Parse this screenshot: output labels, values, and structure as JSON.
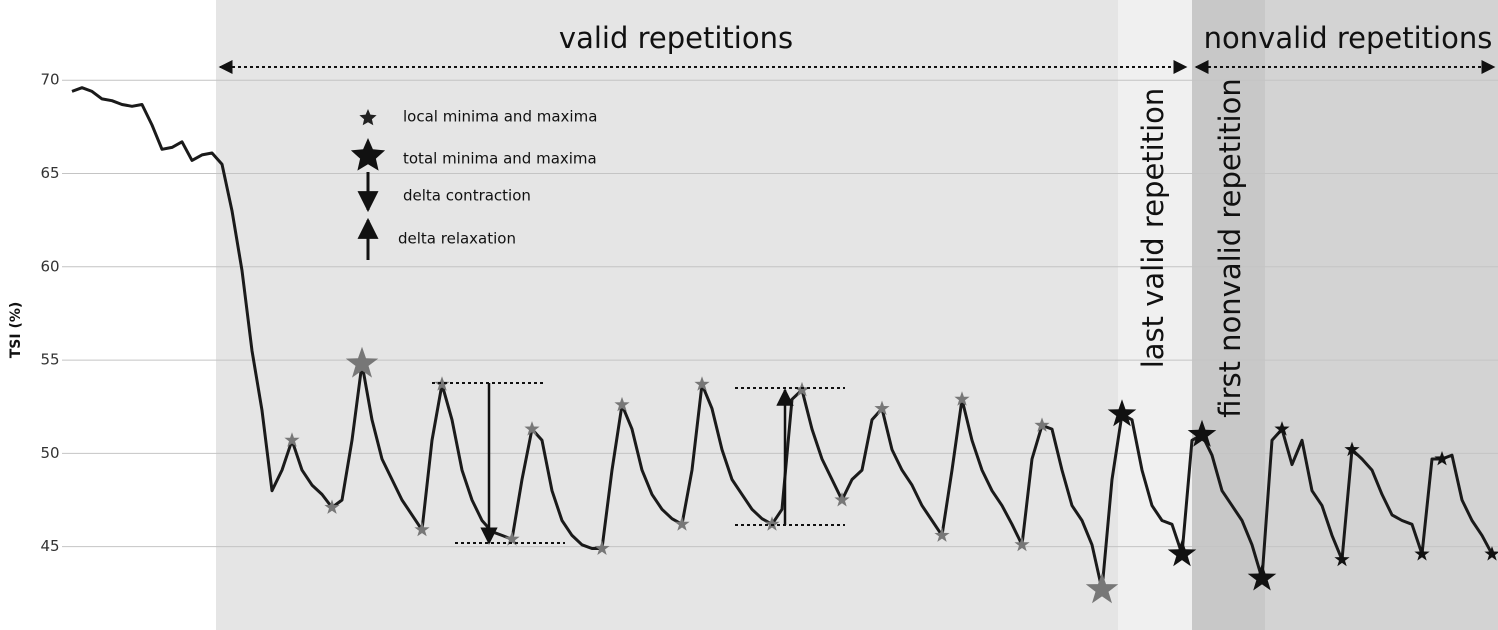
{
  "chart_data": {
    "type": "line",
    "y_label": "TSI (%)",
    "ylim": [
      40.8,
      74.3
    ],
    "yticks": [
      45,
      50,
      55,
      60,
      65,
      70
    ],
    "grid": true,
    "series": [
      {
        "color": "#1a1a1a",
        "values": [
          69.4,
          69.6,
          69.4,
          69.0,
          68.9,
          68.7,
          68.6,
          68.7,
          67.6,
          66.3,
          66.4,
          66.7,
          65.7,
          66.0,
          66.1,
          65.5,
          63.0,
          59.8,
          55.5,
          52.3,
          48.0,
          49.1,
          50.7,
          49.1,
          48.3,
          47.8,
          47.1,
          47.5,
          50.7,
          54.8,
          51.8,
          49.7,
          48.6,
          47.5,
          46.7,
          45.9,
          50.7,
          53.7,
          51.8,
          49.1,
          47.5,
          46.4,
          45.8,
          45.6,
          45.4,
          48.6,
          51.3,
          50.7,
          48.0,
          46.4,
          45.6,
          45.1,
          44.9,
          44.9,
          49.1,
          52.6,
          51.3,
          49.1,
          47.8,
          47.0,
          46.5,
          46.2,
          49.1,
          53.7,
          52.4,
          50.2,
          48.6,
          47.8,
          47.0,
          46.5,
          46.2,
          47.0,
          52.9,
          53.4,
          51.3,
          49.7,
          48.6,
          47.5,
          48.6,
          49.1,
          51.8,
          52.4,
          50.2,
          49.1,
          48.3,
          47.2,
          46.4,
          45.6,
          49.1,
          52.9,
          50.7,
          49.1,
          48.0,
          47.2,
          46.2,
          45.1,
          49.7,
          51.5,
          51.3,
          49.1,
          47.2,
          46.4,
          45.1,
          42.7,
          48.6,
          52.1,
          51.8,
          49.1,
          47.2,
          46.4,
          46.2,
          44.6,
          50.7,
          51.0,
          49.9,
          48.0,
          47.2,
          46.4,
          45.1,
          43.3,
          50.7,
          51.3,
          49.4,
          50.7,
          48.0,
          47.2,
          45.6,
          44.3,
          50.2,
          49.7,
          49.1,
          47.8,
          46.7,
          46.4,
          46.2,
          44.6,
          49.7,
          49.7,
          49.9,
          47.5,
          46.4,
          45.6,
          44.6
        ]
      }
    ],
    "annotations": [
      "valid repetitions",
      "nonvalid repetitions",
      "last valid repetition",
      "first nonvalid repetition"
    ],
    "legend": [
      "local minima and maxima",
      "total minima and maxima",
      "delta contraction",
      "delta relaxation"
    ]
  }
}
